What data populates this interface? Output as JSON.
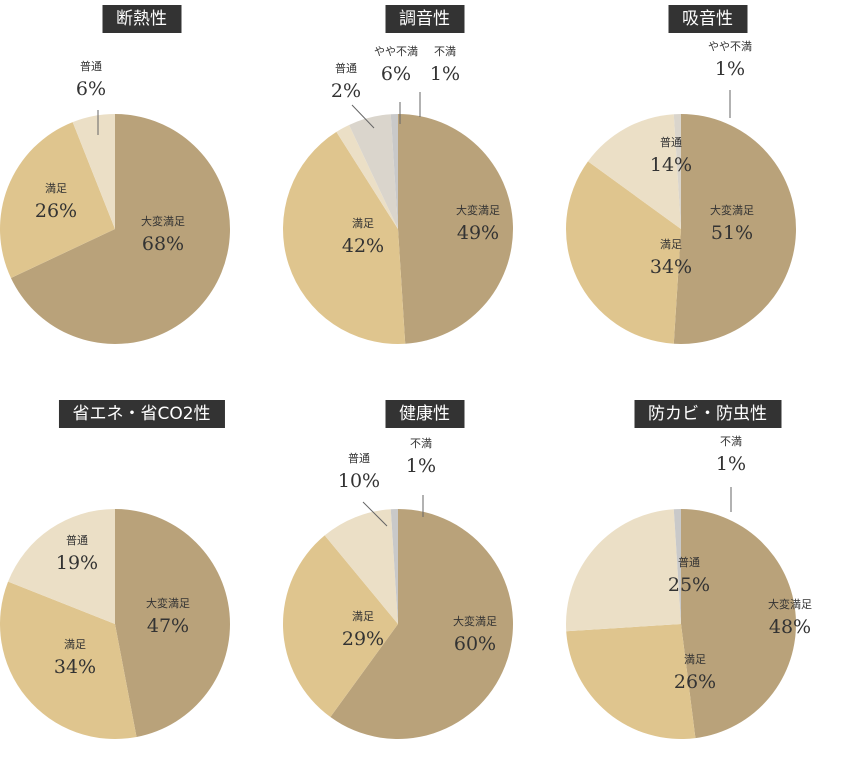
{
  "colors": {
    "大変満足": "#b9a27a",
    "満足": "#dfc58e",
    "普通": "#ebdfc6",
    "やや不満": "#dad5cc",
    "不満": "#c9c9c9"
  },
  "chart_data": [
    {
      "type": "pie",
      "title": "断熱性",
      "slices": [
        {
          "label": "大変満足",
          "value": 68,
          "text": "68%"
        },
        {
          "label": "満足",
          "value": 26,
          "text": "26%"
        },
        {
          "label": "普通",
          "value": 6,
          "text": "6%"
        }
      ]
    },
    {
      "type": "pie",
      "title": "調音性",
      "slices": [
        {
          "label": "大変満足",
          "value": 49,
          "text": "49%"
        },
        {
          "label": "満足",
          "value": 42,
          "text": "42%"
        },
        {
          "label": "普通",
          "value": 2,
          "text": "2%"
        },
        {
          "label": "やや不満",
          "value": 6,
          "text": "6%"
        },
        {
          "label": "不満",
          "value": 1,
          "text": "1%"
        }
      ]
    },
    {
      "type": "pie",
      "title": "吸音性",
      "slices": [
        {
          "label": "大変満足",
          "value": 51,
          "text": "51%"
        },
        {
          "label": "満足",
          "value": 34,
          "text": "34%"
        },
        {
          "label": "普通",
          "value": 14,
          "text": "14%"
        },
        {
          "label": "やや不満",
          "value": 1,
          "text": "1%"
        }
      ]
    },
    {
      "type": "pie",
      "title": "省エネ・省CO2性",
      "slices": [
        {
          "label": "大変満足",
          "value": 47,
          "text": "47%"
        },
        {
          "label": "満足",
          "value": 34,
          "text": "34%"
        },
        {
          "label": "普通",
          "value": 19,
          "text": "19%"
        }
      ]
    },
    {
      "type": "pie",
      "title": "健康性",
      "slices": [
        {
          "label": "大変満足",
          "value": 60,
          "text": "60%"
        },
        {
          "label": "満足",
          "value": 29,
          "text": "29%"
        },
        {
          "label": "普通",
          "value": 10,
          "text": "10%"
        },
        {
          "label": "不満",
          "value": 1,
          "text": "1%"
        }
      ]
    },
    {
      "type": "pie",
      "title": "防カビ・防虫性",
      "slices": [
        {
          "label": "大変満足",
          "value": 48,
          "text": "48%"
        },
        {
          "label": "満足",
          "value": 26,
          "text": "26%"
        },
        {
          "label": "普通",
          "value": 25,
          "text": "25%"
        },
        {
          "label": "不満",
          "value": 1,
          "text": "1%"
        }
      ]
    }
  ]
}
